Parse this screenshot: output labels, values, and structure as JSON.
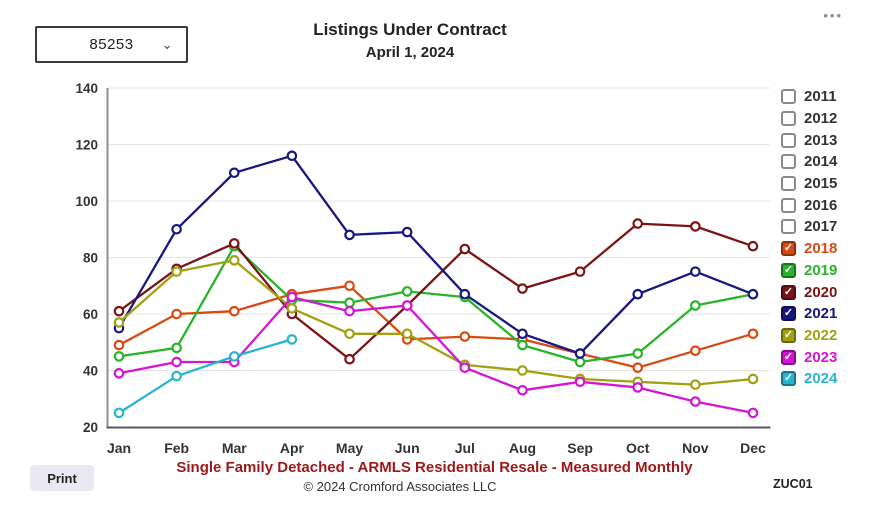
{
  "header": {
    "zip_selector": {
      "value": "85253",
      "chevron_icon": "⌄"
    },
    "title": "Listings Under Contract",
    "subtitle": "April 1, 2024",
    "menu_icon": "•••"
  },
  "legend": {
    "position": "right",
    "items": [
      {
        "year": "2011",
        "checked": false,
        "color": "#333333"
      },
      {
        "year": "2012",
        "checked": false,
        "color": "#333333"
      },
      {
        "year": "2013",
        "checked": false,
        "color": "#333333"
      },
      {
        "year": "2014",
        "checked": false,
        "color": "#333333"
      },
      {
        "year": "2015",
        "checked": false,
        "color": "#333333"
      },
      {
        "year": "2016",
        "checked": false,
        "color": "#333333"
      },
      {
        "year": "2017",
        "checked": false,
        "color": "#333333"
      },
      {
        "year": "2018",
        "checked": true,
        "color": "#d94a12"
      },
      {
        "year": "2019",
        "checked": true,
        "color": "#27b42a"
      },
      {
        "year": "2020",
        "checked": true,
        "color": "#7c1416"
      },
      {
        "year": "2021",
        "checked": true,
        "color": "#17177f"
      },
      {
        "year": "2022",
        "checked": true,
        "color": "#a1a012"
      },
      {
        "year": "2023",
        "checked": true,
        "color": "#d316d3"
      },
      {
        "year": "2024",
        "checked": true,
        "color": "#25b5ce"
      }
    ]
  },
  "chart_data": {
    "type": "line",
    "title": "Listings Under Contract",
    "subtitle": "April 1, 2024",
    "categories": [
      "Jan",
      "Feb",
      "Mar",
      "Apr",
      "May",
      "Jun",
      "Jul",
      "Aug",
      "Sep",
      "Oct",
      "Nov",
      "Dec"
    ],
    "ylim": [
      20,
      140
    ],
    "yticks": [
      140,
      120,
      100,
      80,
      60,
      40,
      20
    ],
    "grid": true,
    "legend_position": "right",
    "marker": "open-circle",
    "series": [
      {
        "name": "2018",
        "color": "#d94a12",
        "values": [
          49,
          60,
          61,
          67,
          70,
          51,
          52,
          51,
          46,
          41,
          47,
          53
        ]
      },
      {
        "name": "2019",
        "color": "#27b42a",
        "values": [
          45,
          48,
          84,
          65,
          64,
          68,
          66,
          49,
          43,
          46,
          63,
          67
        ]
      },
      {
        "name": "2020",
        "color": "#7c1416",
        "values": [
          61,
          76,
          85,
          60,
          44,
          63,
          83,
          69,
          75,
          92,
          91,
          84
        ]
      },
      {
        "name": "2021",
        "color": "#17177f",
        "values": [
          55,
          90,
          110,
          116,
          88,
          89,
          67,
          53,
          46,
          67,
          75,
          67
        ]
      },
      {
        "name": "2022",
        "color": "#a1a012",
        "values": [
          57,
          75,
          79,
          62,
          53,
          53,
          42,
          40,
          37,
          36,
          35,
          37
        ]
      },
      {
        "name": "2023",
        "color": "#d316d3",
        "values": [
          39,
          43,
          43,
          66,
          61,
          63,
          41,
          33,
          36,
          34,
          29,
          25
        ]
      },
      {
        "name": "2024",
        "color": "#25b5ce",
        "values": [
          25,
          38,
          45,
          51,
          null,
          null,
          null,
          null,
          null,
          null,
          null,
          null
        ]
      }
    ]
  },
  "footer": {
    "print_label": "Print",
    "tagline": "Single Family Detached - ARMLS Residential Resale - Measured Monthly",
    "copyright": "© 2024 Cromford Associates LLC",
    "code": "ZUC01"
  }
}
